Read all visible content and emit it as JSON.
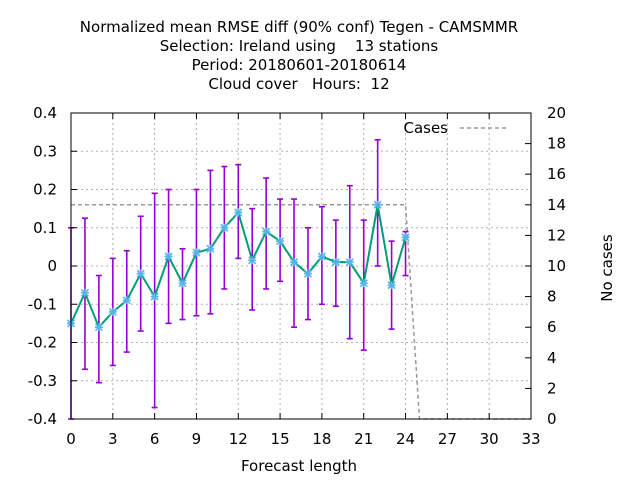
{
  "chart_data": {
    "type": "line",
    "title_lines": [
      "Normalized mean RMSE diff (90% conf) Tegen - CAMSMMR",
      "Selection: Ireland using    13 stations",
      "Period: 20180601-20180614",
      "Cloud cover   Hours:  12"
    ],
    "xlabel": "Forecast length",
    "ylabel": "",
    "y2label": "No cases",
    "xlim": [
      0,
      33
    ],
    "ylim": [
      -0.4,
      0.4
    ],
    "y2lim": [
      0,
      20
    ],
    "xticks": [
      0,
      3,
      6,
      9,
      12,
      15,
      18,
      21,
      24,
      27,
      30,
      33
    ],
    "xtick_labels": [
      "0",
      "3",
      "6",
      "9",
      "12",
      "15",
      "18",
      "21",
      "24",
      "27",
      "30",
      "33"
    ],
    "yticks": [
      -0.4,
      -0.3,
      -0.2,
      -0.1,
      0,
      0.1,
      0.2,
      0.3,
      0.4
    ],
    "ytick_labels": [
      "-0.4",
      "-0.3",
      "-0.2",
      "-0.1",
      "0",
      "0.1",
      "0.2",
      "0.3",
      "0.4"
    ],
    "y2ticks": [
      0,
      2,
      4,
      6,
      8,
      10,
      12,
      14,
      16,
      18,
      20
    ],
    "y2tick_labels": [
      "0",
      "2",
      "4",
      "6",
      "8",
      "10",
      "12",
      "14",
      "16",
      "18",
      "20"
    ],
    "grid": true,
    "legend_position": "top-right",
    "series": [
      {
        "name": "",
        "color": "#009e73",
        "marker_color": "#56b4e9",
        "errorbar_color": "#9400d3",
        "x": [
          0,
          1,
          2,
          3,
          4,
          5,
          6,
          7,
          8,
          9,
          10,
          11,
          12,
          13,
          14,
          15,
          16,
          17,
          18,
          19,
          20,
          21,
          22,
          23,
          24
        ],
        "y": [
          -0.15,
          -0.07,
          -0.16,
          -0.12,
          -0.09,
          -0.02,
          -0.08,
          0.025,
          -0.045,
          0.035,
          0.045,
          0.1,
          0.14,
          0.015,
          0.09,
          0.065,
          0.01,
          -0.02,
          0.025,
          0.01,
          0.01,
          -0.045,
          0.16,
          -0.05,
          0.075
        ],
        "y_low": [
          -0.4,
          -0.27,
          -0.305,
          -0.26,
          -0.225,
          -0.17,
          -0.37,
          -0.15,
          -0.14,
          -0.13,
          -0.125,
          -0.06,
          0.02,
          -0.115,
          -0.06,
          -0.04,
          -0.16,
          -0.14,
          -0.1,
          -0.105,
          -0.19,
          -0.22,
          0.0,
          -0.165,
          -0.025
        ],
        "y_high": [
          0.1,
          0.125,
          -0.025,
          0.02,
          0.04,
          0.13,
          0.19,
          0.2,
          0.045,
          0.2,
          0.25,
          0.26,
          0.265,
          0.15,
          0.23,
          0.175,
          0.175,
          0.1,
          0.155,
          0.12,
          0.21,
          0.12,
          0.33,
          0.065,
          0.09
        ]
      },
      {
        "name": "Cases",
        "axis": "y2",
        "color": "#999999",
        "dashed": true,
        "x": [
          0,
          1,
          2,
          3,
          4,
          5,
          6,
          7,
          8,
          9,
          10,
          11,
          12,
          13,
          14,
          15,
          16,
          17,
          18,
          19,
          20,
          21,
          22,
          23,
          24,
          25,
          26,
          27,
          28,
          29,
          30,
          31,
          32,
          33
        ],
        "y": [
          14,
          14,
          14,
          14,
          14,
          14,
          14,
          14,
          14,
          14,
          14,
          14,
          14,
          14,
          14,
          14,
          14,
          14,
          14,
          14,
          14,
          14,
          14,
          14,
          14,
          0,
          0,
          0,
          0,
          0,
          0,
          0,
          0,
          0
        ]
      }
    ]
  }
}
